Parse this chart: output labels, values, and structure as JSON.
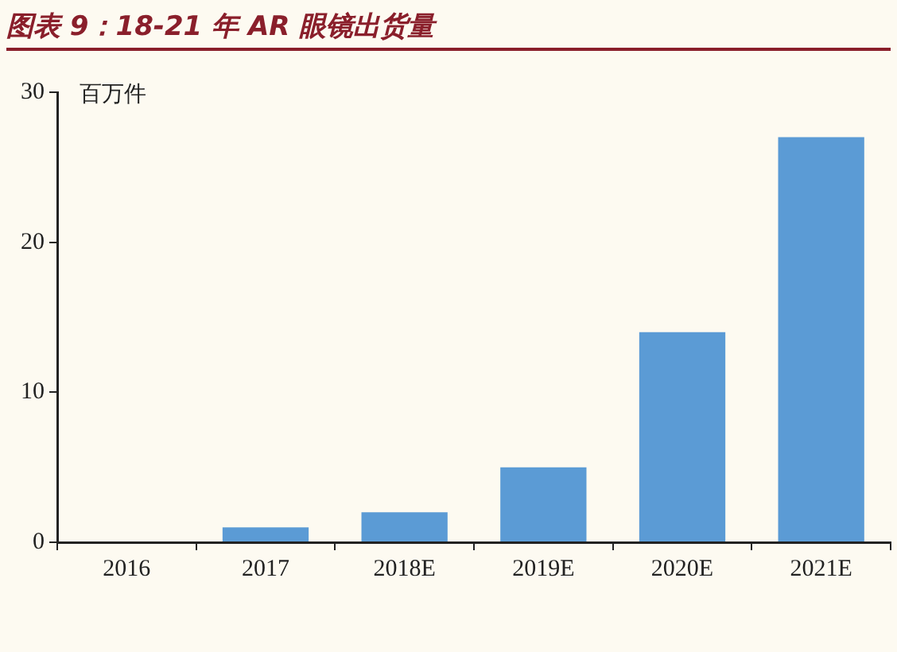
{
  "chart_data": {
    "type": "bar",
    "title": "图表 9：18-21 年 AR 眼镜出货量",
    "ylabel": "百万件",
    "categories": [
      "2016",
      "2017",
      "2018E",
      "2019E",
      "2020E",
      "2021E"
    ],
    "values": [
      0,
      1,
      2,
      5,
      14,
      27
    ],
    "color": "#5b9bd5",
    "ylim": [
      0,
      30
    ],
    "yticks": [
      0,
      10,
      20,
      30
    ],
    "grid": false,
    "legend": false
  }
}
